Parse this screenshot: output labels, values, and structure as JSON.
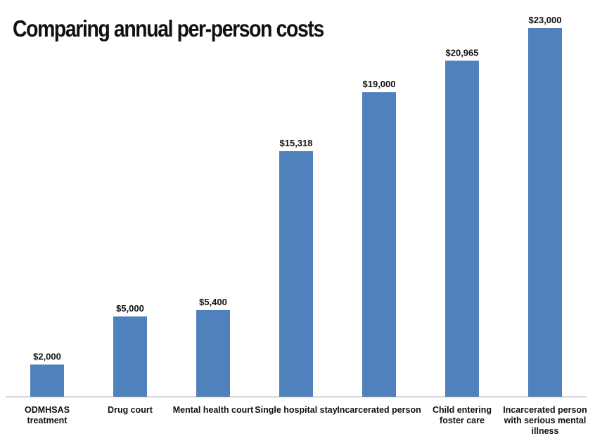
{
  "chart_data": {
    "type": "bar",
    "title": "Comparing annual per-person costs",
    "categories": [
      "ODMHSAS treatment",
      "Drug court",
      "Mental health court",
      "Single hospital stay",
      "Incarcerated person",
      "Child entering foster care",
      "Incarcerated person with serious mental illness"
    ],
    "category_label_lines": [
      [
        "ODMHSAS",
        "treatment"
      ],
      [
        "Drug court"
      ],
      [
        "Mental health court"
      ],
      [
        "Single hospital stay"
      ],
      [
        "Incarcerated person"
      ],
      [
        "Child entering",
        "foster care"
      ],
      [
        "Incarcerated person",
        "with serious mental",
        "illness"
      ]
    ],
    "values": [
      2000,
      5000,
      5400,
      15318,
      19000,
      20965,
      23000
    ],
    "data_labels": [
      "$2,000",
      "$5,000",
      "$5,400",
      "$15,318",
      "$19,000",
      "$20,965",
      "$23,000"
    ],
    "xlabel": "",
    "ylabel": "",
    "ylim": [
      0,
      23000
    ],
    "grid": false,
    "legend": "none",
    "bar_color": "#4f81bd",
    "axis_color": "#9a9a9a"
  }
}
